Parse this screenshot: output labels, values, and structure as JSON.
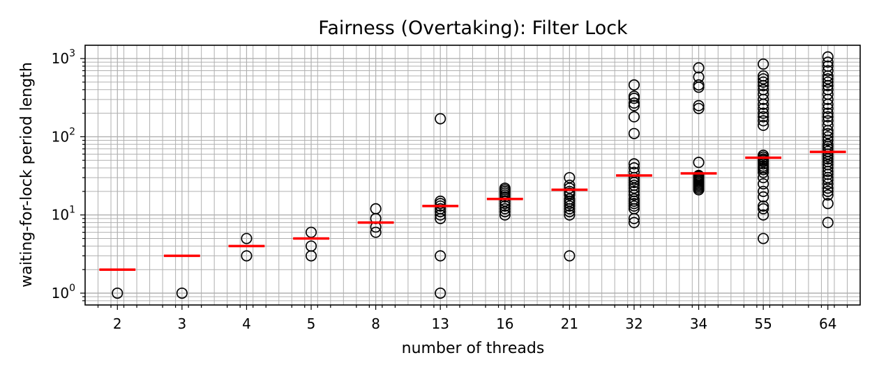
{
  "chart_data": {
    "type": "box",
    "title": "Fairness (Overtaking): Filter Lock",
    "xlabel": "number of threads",
    "ylabel": "waiting-for-lock period length",
    "yscale": "log",
    "ylim": [
      0.7,
      1500
    ],
    "grid": true,
    "categories": [
      "2",
      "3",
      "4",
      "5",
      "8",
      "13",
      "16",
      "21",
      "32",
      "34",
      "55",
      "64"
    ],
    "y_tick_labels": [
      {
        "base": "10",
        "exp": "0",
        "value": 1
      },
      {
        "base": "10",
        "exp": "1",
        "value": 10
      },
      {
        "base": "10",
        "exp": "2",
        "value": 100
      },
      {
        "base": "10",
        "exp": "3",
        "value": 1000
      }
    ],
    "medians": [
      2,
      3,
      4,
      5,
      8,
      13,
      16,
      21,
      32,
      34,
      54,
      64
    ],
    "median_color": "#ff0000",
    "outliers": [
      [
        1
      ],
      [
        1
      ],
      [
        3,
        5
      ],
      [
        3,
        4,
        6
      ],
      [
        6,
        7,
        9,
        12
      ],
      [
        1,
        3,
        9,
        10,
        11,
        12,
        13,
        14,
        15,
        170
      ],
      [
        10,
        11,
        12,
        13,
        14,
        15,
        17,
        18,
        19,
        20,
        21,
        22
      ],
      [
        3,
        10,
        11,
        12,
        13,
        14,
        15,
        16,
        18,
        19,
        20,
        22,
        24,
        30
      ],
      [
        8,
        9,
        12,
        13,
        14,
        15,
        16,
        18,
        20,
        22,
        24,
        26,
        28,
        30,
        35,
        40,
        45,
        110,
        180,
        250,
        270,
        310,
        330,
        460
      ],
      [
        21,
        22,
        23,
        24,
        25,
        26,
        27,
        28,
        29,
        30,
        31,
        32,
        47,
        230,
        250,
        430,
        460,
        580,
        760
      ],
      [
        5,
        10,
        12,
        13,
        17,
        20,
        25,
        30,
        35,
        38,
        40,
        42,
        45,
        48,
        50,
        52,
        55,
        58,
        140,
        160,
        180,
        200,
        230,
        260,
        300,
        350,
        400,
        450,
        500,
        550,
        600,
        850
      ],
      [
        8,
        14,
        18,
        20,
        22,
        25,
        28,
        30,
        33,
        36,
        40,
        44,
        48,
        52,
        56,
        60,
        65,
        70,
        75,
        80,
        90,
        100,
        110,
        120,
        140,
        160,
        180,
        200,
        230,
        260,
        300,
        350,
        400,
        450,
        500,
        550,
        600,
        700,
        800,
        900,
        1050
      ]
    ]
  }
}
